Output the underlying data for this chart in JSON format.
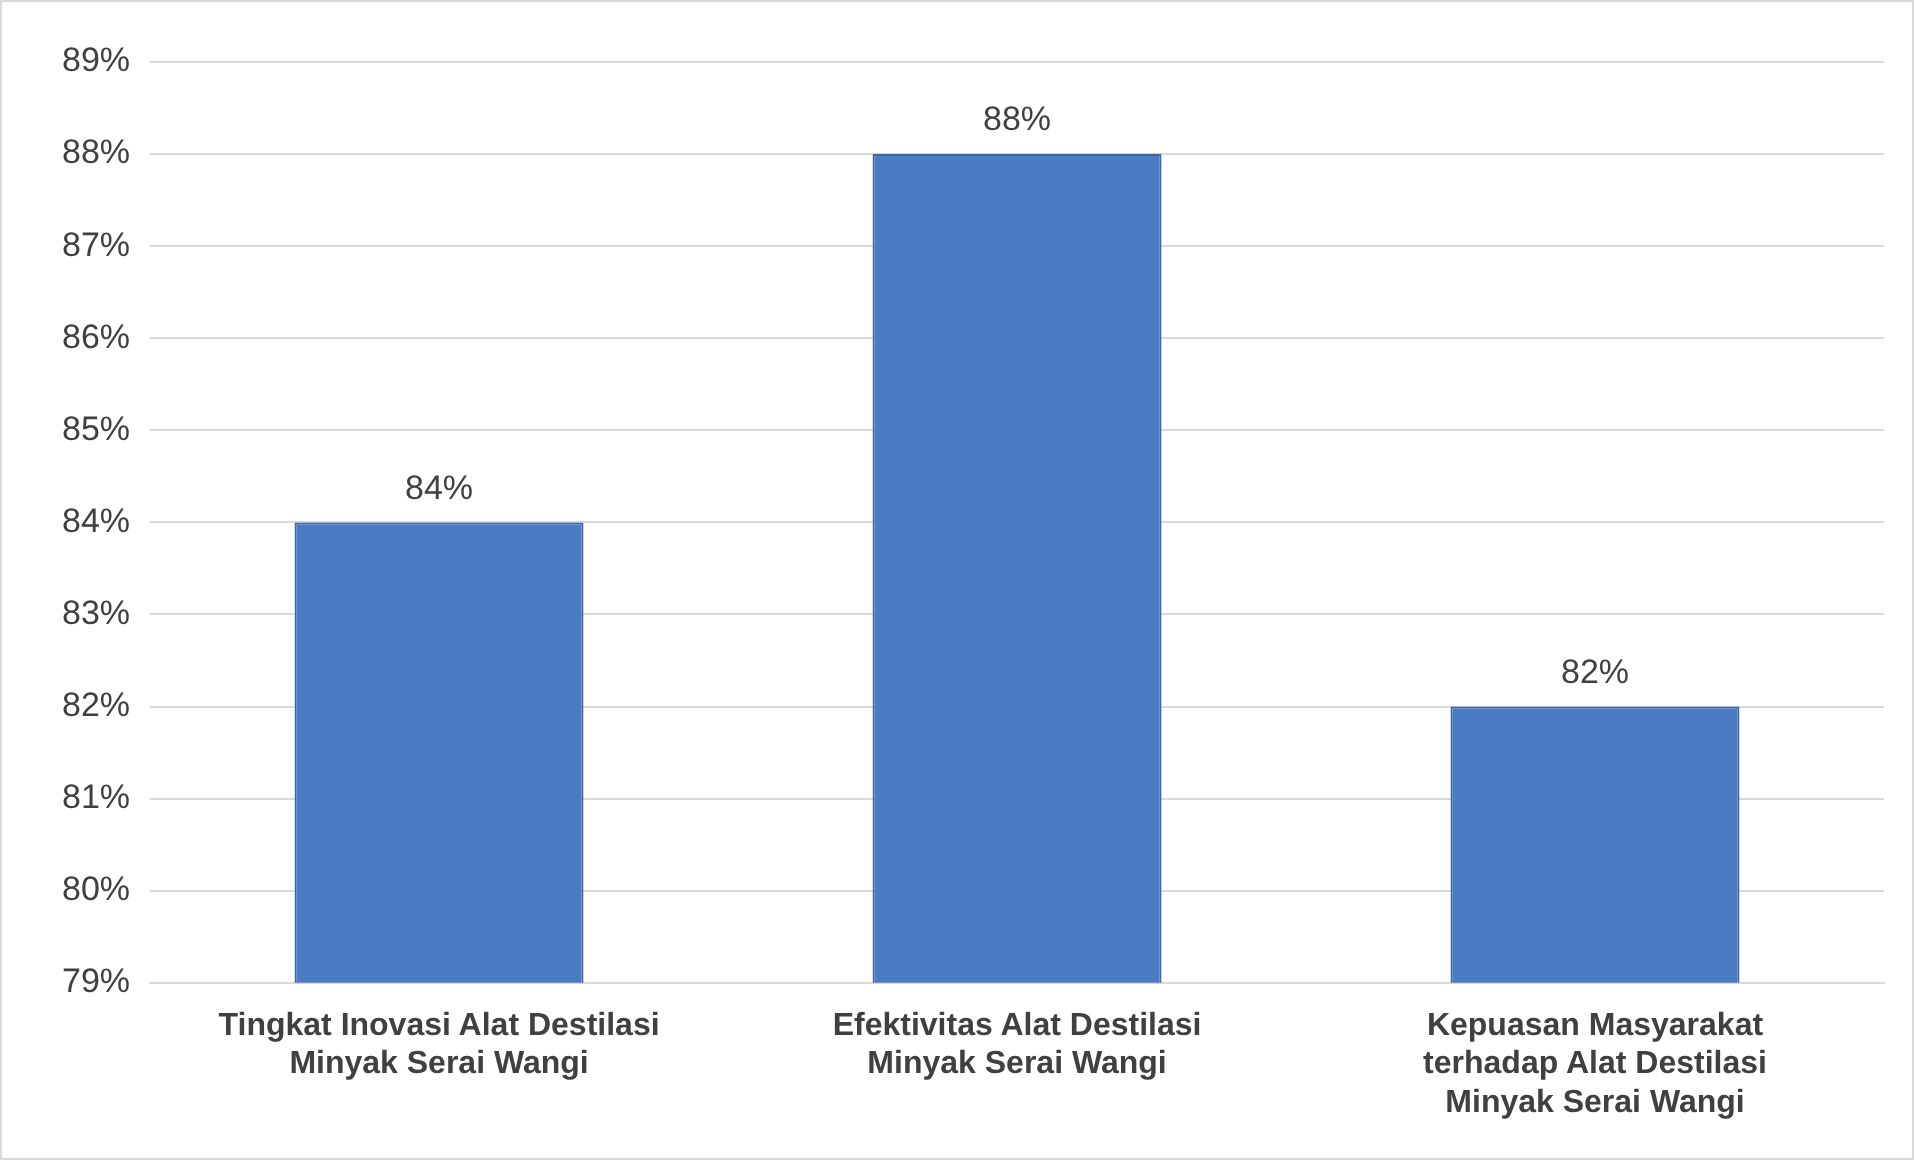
{
  "chart_data": {
    "type": "bar",
    "categories": [
      "Tingkat Inovasi Alat Destilasi Minyak Serai Wangi",
      "Efektivitas Alat Destilasi Minyak Serai Wangi",
      "Kepuasan Masyarakat terhadap Alat Destilasi Minyak Serai Wangi"
    ],
    "values": [
      84,
      88,
      82
    ],
    "value_labels": [
      "84%",
      "88%",
      "82%"
    ],
    "color": "#4a7cc4",
    "ylim": [
      79,
      89
    ],
    "yticks": [
      {
        "value": 79,
        "label": "79%"
      },
      {
        "value": 80,
        "label": "80%"
      },
      {
        "value": 81,
        "label": "81%"
      },
      {
        "value": 82,
        "label": "82%"
      },
      {
        "value": 83,
        "label": "83%"
      },
      {
        "value": 84,
        "label": "84%"
      },
      {
        "value": 85,
        "label": "85%"
      },
      {
        "value": 86,
        "label": "86%"
      },
      {
        "value": 87,
        "label": "87%"
      },
      {
        "value": 88,
        "label": "88%"
      },
      {
        "value": 89,
        "label": "89%"
      }
    ],
    "grid": "y"
  }
}
